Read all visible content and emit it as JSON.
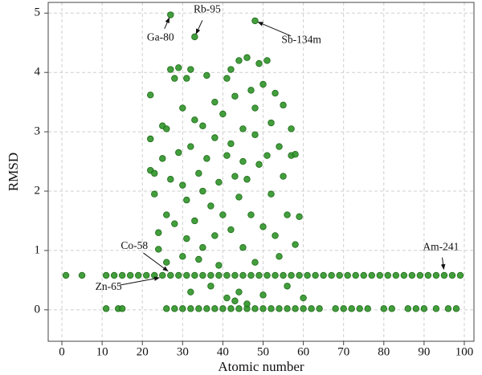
{
  "chart_data": {
    "type": "scatter",
    "x_label": "Atomic number",
    "y_label": "RMSD",
    "color": "#2f9428",
    "edgecolor": "#1c6a16",
    "grid": true,
    "xlim": [
      -3.4,
      102.4
    ],
    "ylim": [
      -0.53,
      5.18
    ],
    "xticks": [
      0,
      10,
      20,
      30,
      40,
      50,
      60,
      70,
      80,
      90,
      100
    ],
    "yticks": [
      0,
      1,
      2,
      3,
      4,
      5
    ],
    "x": [
      1,
      5,
      11,
      13,
      15,
      17,
      19,
      21,
      23,
      25,
      27,
      29,
      31,
      33,
      35,
      37,
      39,
      41,
      43,
      45,
      47,
      49,
      51,
      53,
      55,
      57,
      59,
      61,
      63,
      65,
      67,
      69,
      71,
      73,
      75,
      77,
      79,
      81,
      83,
      85,
      87,
      89,
      91,
      93,
      95,
      97,
      99,
      11,
      14,
      15,
      26,
      28,
      30,
      32,
      34,
      36,
      38,
      40,
      42,
      44,
      46,
      48,
      50,
      52,
      54,
      56,
      58,
      60,
      62,
      64,
      68,
      70,
      72,
      74,
      76,
      80,
      82,
      86,
      88,
      90,
      93,
      96,
      98,
      22,
      22,
      22,
      23,
      23,
      24,
      24,
      25,
      26,
      25,
      26,
      26,
      27,
      27,
      28,
      28,
      29,
      29,
      30,
      30,
      30,
      31,
      31,
      31,
      32,
      32,
      32,
      33,
      33,
      34,
      34,
      35,
      35,
      35,
      36,
      36,
      37,
      37,
      38,
      38,
      38,
      39,
      39,
      40,
      40,
      41,
      41,
      41,
      42,
      42,
      42,
      43,
      43,
      43,
      44,
      44,
      44,
      45,
      45,
      45,
      46,
      46,
      46,
      47,
      47,
      48,
      48,
      48,
      49,
      49,
      50,
      50,
      50,
      51,
      51,
      52,
      52,
      53,
      53,
      54,
      54,
      55,
      55,
      56,
      56,
      57,
      57,
      58,
      58,
      59,
      60,
      27,
      33,
      48
    ],
    "y": [
      0.58,
      0.58,
      0.58,
      0.58,
      0.58,
      0.58,
      0.58,
      0.58,
      0.58,
      0.58,
      0.58,
      0.58,
      0.58,
      0.58,
      0.58,
      0.58,
      0.58,
      0.58,
      0.58,
      0.58,
      0.58,
      0.58,
      0.58,
      0.58,
      0.58,
      0.58,
      0.58,
      0.58,
      0.58,
      0.58,
      0.58,
      0.58,
      0.58,
      0.58,
      0.58,
      0.58,
      0.58,
      0.58,
      0.58,
      0.58,
      0.58,
      0.58,
      0.58,
      0.58,
      0.58,
      0.58,
      0.58,
      0.02,
      0.02,
      0.02,
      0.02,
      0.02,
      0.02,
      0.02,
      0.02,
      0.02,
      0.02,
      0.02,
      0.02,
      0.02,
      0.02,
      0.02,
      0.02,
      0.02,
      0.02,
      0.02,
      0.02,
      0.02,
      0.02,
      0.02,
      0.02,
      0.02,
      0.02,
      0.02,
      0.02,
      0.02,
      0.02,
      0.02,
      0.02,
      0.02,
      0.02,
      0.02,
      0.02,
      3.62,
      2.88,
      2.35,
      2.3,
      1.95,
      1.3,
      1.02,
      3.1,
      3.05,
      2.55,
      1.6,
      0.8,
      4.05,
      2.2,
      3.9,
      1.45,
      4.08,
      2.65,
      3.4,
      2.1,
      0.9,
      3.9,
      1.85,
      1.2,
      4.05,
      2.75,
      0.3,
      3.2,
      1.5,
      2.3,
      0.85,
      3.1,
      2.0,
      1.05,
      3.95,
      2.55,
      1.75,
      0.4,
      3.5,
      2.9,
      1.25,
      2.15,
      0.75,
      3.3,
      1.6,
      3.9,
      2.6,
      0.2,
      4.05,
      2.8,
      1.35,
      3.6,
      2.25,
      0.15,
      4.2,
      1.9,
      0.3,
      3.05,
      2.5,
      1.05,
      4.25,
      2.2,
      0.1,
      3.7,
      1.6,
      2.95,
      3.4,
      0.8,
      4.15,
      2.45,
      3.8,
      1.4,
      0.25,
      4.2,
      2.6,
      3.15,
      1.95,
      3.65,
      1.25,
      2.75,
      0.9,
      3.45,
      2.25,
      1.6,
      0.4,
      3.05,
      2.6,
      2.62,
      1.1,
      1.57,
      0.2,
      4.97,
      4.6,
      4.87
    ],
    "annotations": [
      {
        "text": "Ga-80",
        "xy": [
          27,
          4.97
        ],
        "xytext": [
          24.5,
          4.58
        ]
      },
      {
        "text": "Rb-95",
        "xy": [
          33,
          4.6
        ],
        "xytext": [
          36.1,
          5.05
        ]
      },
      {
        "text": "Sb-134m",
        "xy": [
          48,
          4.87
        ],
        "xytext": [
          59.5,
          4.54
        ]
      },
      {
        "text": "Co-58",
        "xy": [
          27,
          0.62
        ],
        "xytext": [
          18,
          1.07
        ]
      },
      {
        "text": "Zn-65",
        "xy": [
          25,
          0.55
        ],
        "xytext": [
          11.6,
          0.38
        ]
      },
      {
        "text": "Am-241",
        "xy": [
          95,
          0.63
        ],
        "xytext": [
          94.2,
          1.05
        ]
      }
    ]
  }
}
